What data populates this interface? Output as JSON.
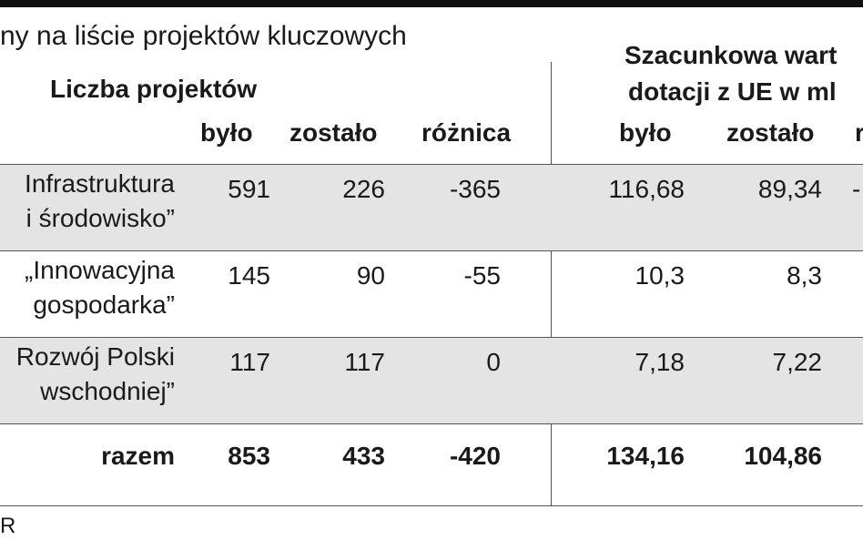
{
  "header": {
    "title": "ny na liście projektów kluczowych",
    "group1": "Liczba projektów",
    "group2": [
      "Szacunkowa wart",
      "dotacji z UE w ml"
    ]
  },
  "columns": [
    "było",
    "zostało",
    "różnica",
    "było",
    "zostało",
    "r"
  ],
  "rows": [
    {
      "label": [
        "Infrastruktura",
        "i środowisko”"
      ],
      "values": [
        "591",
        "226",
        "-365",
        "116,68",
        "89,34",
        "-"
      ]
    },
    {
      "label": [
        "„Innowacyjna",
        "gospodarka”"
      ],
      "values": [
        "145",
        "90",
        "-55",
        "10,3",
        "8,3"
      ]
    },
    {
      "label": [
        "Rozwój Polski",
        "wschodniej”"
      ],
      "values": [
        "117",
        "117",
        "0",
        "7,18",
        "7,22"
      ]
    },
    {
      "label": [
        "razem"
      ],
      "values": [
        "853",
        "433",
        "-420",
        "134,16",
        "104,86"
      ]
    }
  ],
  "footer": {
    "source": "R"
  }
}
